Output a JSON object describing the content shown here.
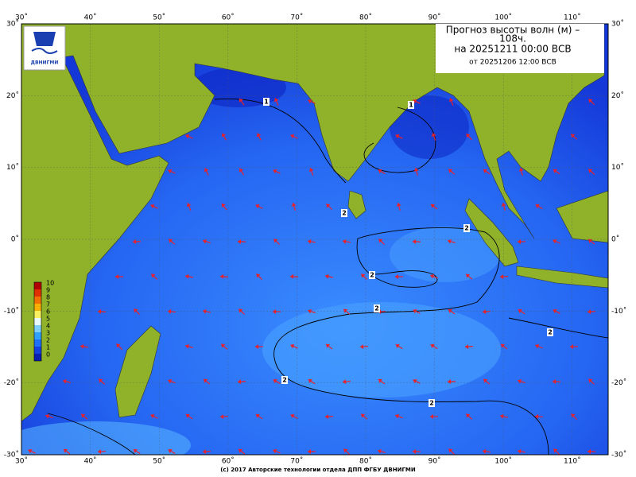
{
  "logo": {
    "text": "ДВНИГМИ"
  },
  "header": {
    "title": "Прогноз высоты волн (м) –",
    "lead": "108ч.",
    "valid": "на 20251211 00:00 ВСВ",
    "issued": "от 20251206 12:00 ВСВ"
  },
  "longitude_labels": [
    "30˚",
    "40˚",
    "50˚",
    "60˚",
    "70˚",
    "80˚",
    "90˚",
    "100˚",
    "110˚"
  ],
  "latitude_labels": [
    "30˚",
    "20˚",
    "10˚",
    "0˚",
    "-10˚",
    "-20˚",
    "-30˚"
  ],
  "colorbar": {
    "labels": [
      "10",
      "9",
      "8",
      "7",
      "6",
      "5",
      "4",
      "3",
      "2",
      "1",
      "0"
    ]
  },
  "contour_labels": [
    "1",
    "1",
    "2",
    "2",
    "2",
    "2",
    "2",
    "2",
    "2"
  ],
  "footer": "(c) 2017 Авторские технологии отдела ДПП ФГБУ ДВНИГМИ"
}
